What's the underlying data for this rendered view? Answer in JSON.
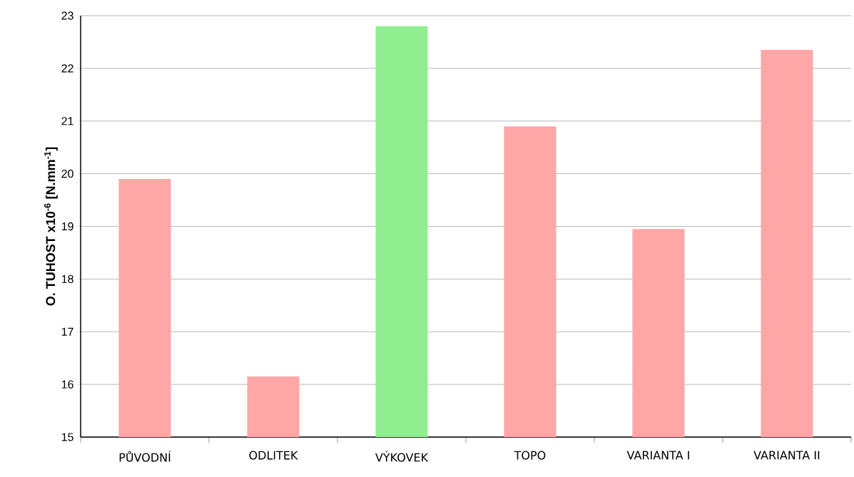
{
  "chart_data": {
    "type": "bar",
    "ylabel": "O. TUHOST x10$^{-6}$ [N.mm$^{-1}$]",
    "categories": [
      "PŮVODNÍ",
      "ODLITEK",
      "VÝKOVEK",
      "TOPO",
      "VARIANTA I",
      "VARIANTA II"
    ],
    "values": [
      19.9,
      16.15,
      22.8,
      20.9,
      18.95,
      22.35
    ],
    "colors": [
      "#ffa6a6",
      "#ffa6a6",
      "#90ee90",
      "#ffa6a6",
      "#ffa6a6",
      "#ffa6a6"
    ],
    "ylim": [
      15,
      23
    ],
    "yticks": [
      15,
      16,
      17,
      18,
      19,
      20,
      21,
      22,
      23
    ],
    "grid": "y"
  }
}
